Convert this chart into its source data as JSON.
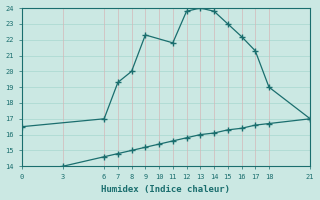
{
  "xlabel": "Humidex (Indice chaleur)",
  "bg_color": "#cbe8e3",
  "line_color": "#1a6e6e",
  "grid_color_h": "#a8d8d0",
  "grid_color_v": "#d4b8b8",
  "upper_line": [
    [
      0,
      16.5
    ],
    [
      6,
      17.0
    ],
    [
      7,
      19.3
    ],
    [
      8,
      20.0
    ],
    [
      9,
      22.3
    ],
    [
      11,
      21.8
    ],
    [
      12,
      23.8
    ],
    [
      13,
      24.0
    ],
    [
      14,
      23.8
    ],
    [
      15,
      23.0
    ],
    [
      16,
      22.2
    ],
    [
      17,
      21.3
    ],
    [
      18,
      19.0
    ],
    [
      21,
      17.0
    ]
  ],
  "lower_line": [
    [
      3,
      14.0
    ],
    [
      6,
      14.6
    ],
    [
      7,
      14.8
    ],
    [
      8,
      15.0
    ],
    [
      9,
      15.2
    ],
    [
      10,
      15.4
    ],
    [
      11,
      15.6
    ],
    [
      12,
      15.8
    ],
    [
      13,
      16.0
    ],
    [
      14,
      16.1
    ],
    [
      15,
      16.3
    ],
    [
      16,
      16.4
    ],
    [
      17,
      16.6
    ],
    [
      18,
      16.7
    ],
    [
      21,
      17.0
    ]
  ],
  "xlim": [
    0,
    21
  ],
  "ylim": [
    14,
    24
  ],
  "xticks": [
    0,
    3,
    6,
    7,
    8,
    9,
    10,
    11,
    12,
    13,
    14,
    15,
    16,
    17,
    18,
    21
  ],
  "yticks": [
    14,
    15,
    16,
    17,
    18,
    19,
    20,
    21,
    22,
    23,
    24
  ],
  "marker": "+",
  "markersize": 4,
  "linewidth": 0.9
}
